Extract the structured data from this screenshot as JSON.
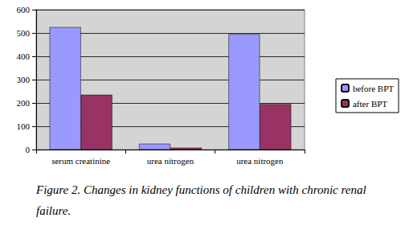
{
  "chart_data": {
    "type": "bar",
    "caption": "Figure 2. Changes in kidney functions of children with chronic renal failure.",
    "categories": [
      "serum creatinine",
      "urea nitrogen",
      "urea nitrogen"
    ],
    "series": [
      {
        "name": "before BPT",
        "color": "#9999ff",
        "values": [
          525,
          25,
          495
        ]
      },
      {
        "name": "after BPT",
        "color": "#993366",
        "values": [
          235,
          8,
          195
        ]
      }
    ],
    "ylim": [
      0,
      600
    ],
    "yticks": [
      0,
      100,
      200,
      300,
      400,
      500,
      600
    ],
    "grid": true,
    "legend": "right"
  }
}
